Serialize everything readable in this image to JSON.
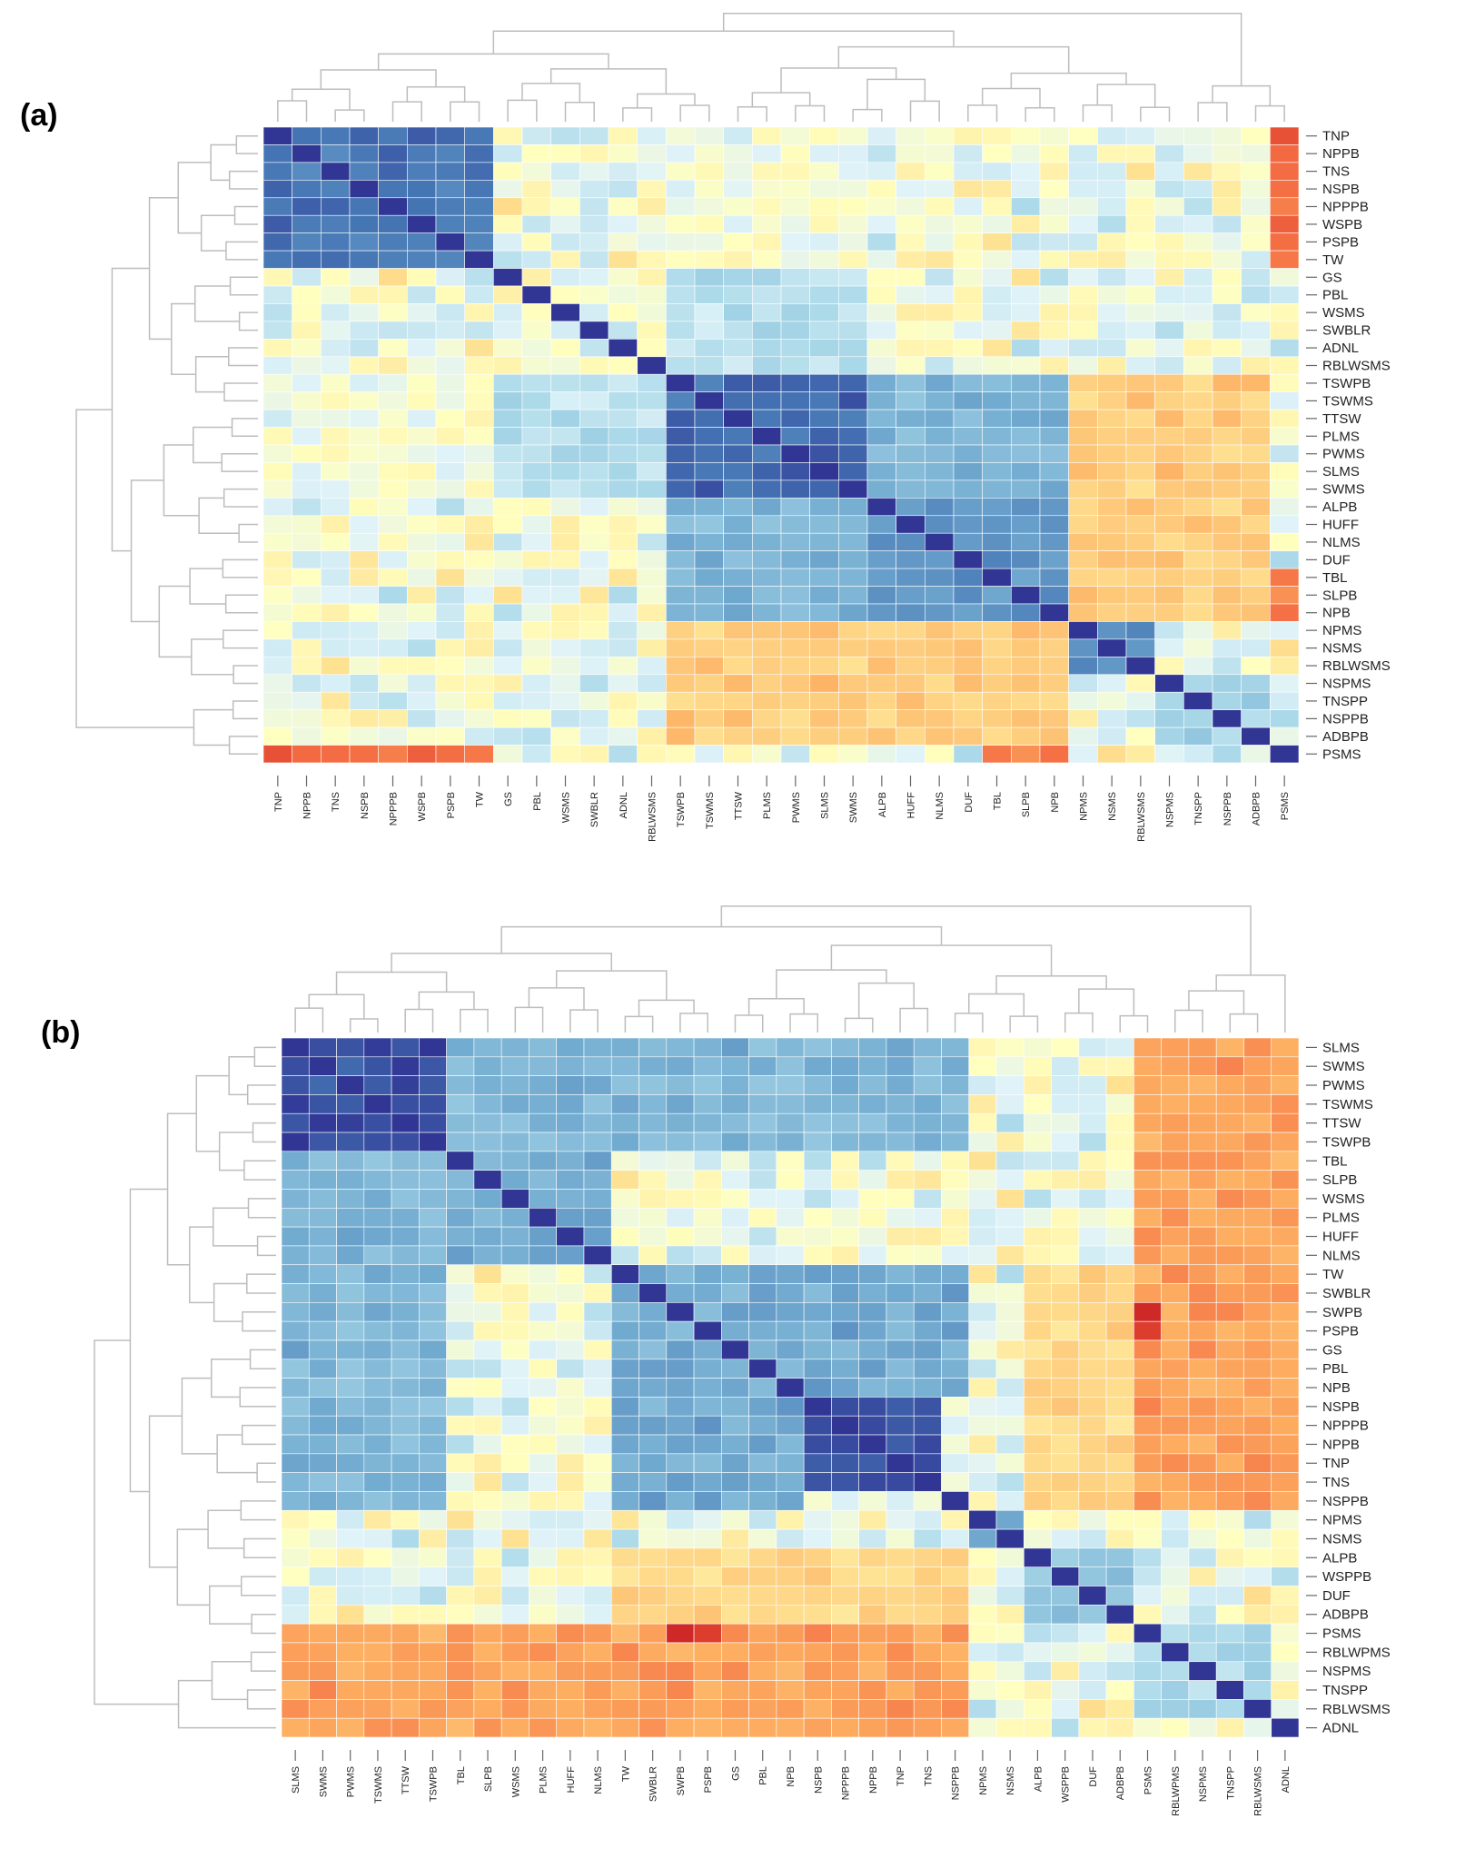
{
  "chart_data": [
    {
      "type": "heatmap",
      "panel_label": "(a)",
      "clustered": true,
      "colormap": "RdYlBu_r",
      "colors": {
        "low": "#313695",
        "mid": "#ffffbf",
        "high": "#a50026"
      },
      "row_labels": [
        "TNP",
        "NPPB",
        "TNS",
        "NSPB",
        "NPPPB",
        "WSPB",
        "PSPB",
        "TW",
        "GS",
        "PBL",
        "WSMS",
        "SWBLR",
        "ADNL",
        "RBLWSMS",
        "TSWPB",
        "TSWMS",
        "TTSW",
        "PLMS",
        "PWMS",
        "SLMS",
        "SWMS",
        "ALPB",
        "HUFF",
        "NLMS",
        "DUF",
        "TBL",
        "SLPB",
        "NPB",
        "NPMS",
        "NSMS",
        "RBLWSMS",
        "NSPMS",
        "TNSPP",
        "NSPPB",
        "ADBPB",
        "PSMS"
      ],
      "col_labels": [
        "TNP",
        "NPPB",
        "TNS",
        "NSPB",
        "NPPPB",
        "WSPB",
        "PSPB",
        "TW",
        "GS",
        "PBL",
        "WSMS",
        "SWBLR",
        "ADNL",
        "RBLWSMS",
        "TSWPB",
        "TSWMS",
        "TTSW",
        "PLMS",
        "PWMS",
        "SLMS",
        "SWMS",
        "ALPB",
        "HUFF",
        "NLMS",
        "DUF",
        "TBL",
        "SLPB",
        "NPB",
        "NPMS",
        "NSMS",
        "RBLWSMS",
        "NSPMS",
        "TNSPP",
        "NSPPB",
        "ADBPB",
        "PSMS"
      ],
      "clusters": [
        {
          "members": [
            0,
            1,
            2,
            3,
            4,
            5,
            6,
            7
          ],
          "value": 0.75
        },
        {
          "members": [
            14,
            15,
            16,
            17,
            18,
            19,
            20
          ],
          "value": 0.78
        },
        {
          "members": [
            21,
            22,
            23,
            24,
            25,
            26,
            27
          ],
          "value": 0.6
        },
        {
          "members": [
            28,
            29,
            30
          ],
          "value": 0.6
        },
        {
          "members": [
            31,
            32,
            33,
            34
          ],
          "value": 0.3
        }
      ],
      "cross_clusters": [
        {
          "a": [
            0,
            1,
            2,
            3,
            4,
            5,
            6,
            7
          ],
          "b": [
            14,
            15,
            16,
            17,
            18,
            19,
            20
          ],
          "value": 0.0
        },
        {
          "a": [
            0,
            1,
            2,
            3,
            4,
            5,
            6,
            7
          ],
          "b": [
            35
          ],
          "value": -0.75
        },
        {
          "a": [
            14,
            15,
            16,
            17,
            18,
            19,
            20,
            21,
            22,
            23,
            24,
            25,
            26,
            27
          ],
          "b": [
            28,
            29,
            30,
            31,
            32,
            33,
            34
          ],
          "value": -0.35
        },
        {
          "a": [
            14,
            15,
            16,
            17,
            18,
            19,
            20
          ],
          "b": [
            21,
            22,
            23,
            24,
            25,
            26,
            27
          ],
          "value": 0.45
        },
        {
          "a": [
            25,
            26,
            27
          ],
          "b": [
            35
          ],
          "value": -0.7
        },
        {
          "a": [
            8,
            9,
            10,
            11,
            12,
            13
          ],
          "b": [
            14,
            15,
            16,
            17,
            18,
            19,
            20
          ],
          "value": 0.2
        }
      ]
    },
    {
      "type": "heatmap",
      "panel_label": "(b)",
      "clustered": true,
      "colormap": "RdYlBu_r",
      "colors": {
        "low": "#313695",
        "mid": "#ffffbf",
        "high": "#a50026"
      },
      "row_labels": [
        "SLMS",
        "SWMS",
        "PWMS",
        "TSWMS",
        "TTSW",
        "TSWPB",
        "TBL",
        "SLPB",
        "WSMS",
        "PLMS",
        "HUFF",
        "NLMS",
        "TW",
        "SWBLR",
        "SWPB",
        "PSPB",
        "GS",
        "PBL",
        "NPB",
        "NSPB",
        "NPPPB",
        "NPPB",
        "TNP",
        "TNS",
        "NSPPB",
        "NPMS",
        "NSMS",
        "ALPB",
        "WSPPB",
        "DUF",
        "ADBPB",
        "PSMS",
        "RBLWPMS",
        "NSPMS",
        "TNSPP",
        "RBLWSMS",
        "ADNL"
      ],
      "col_labels": [
        "SLMS",
        "SWMS",
        "PWMS",
        "TSWMS",
        "TTSW",
        "TSWPB",
        "TBL",
        "SLPB",
        "WSMS",
        "PLMS",
        "HUFF",
        "NLMS",
        "TW",
        "SWBLR",
        "SWPB",
        "PSPB",
        "GS",
        "PBL",
        "NPB",
        "NSPB",
        "NPPPB",
        "NPPB",
        "TNP",
        "TNS",
        "NSPPB",
        "NPMS",
        "NSMS",
        "ALPB",
        "WSPPB",
        "DUF",
        "ADBPB",
        "PSMS",
        "RBLWPMS",
        "NSPMS",
        "TNSPP",
        "RBLWSMS",
        "ADNL"
      ],
      "clusters": [
        {
          "members": [
            0,
            1,
            2,
            3,
            4,
            5
          ],
          "value": 0.9
        },
        {
          "members": [
            6,
            7,
            8,
            9,
            10,
            11
          ],
          "value": 0.5
        },
        {
          "members": [
            12,
            13,
            14,
            15,
            16,
            17,
            18
          ],
          "value": 0.5
        },
        {
          "members": [
            19,
            20,
            21,
            22,
            23
          ],
          "value": 0.88
        },
        {
          "members": [
            25,
            26
          ],
          "value": 0.6
        },
        {
          "members": [
            27,
            28,
            29,
            30
          ],
          "value": 0.35
        },
        {
          "members": [
            31,
            32,
            33,
            34,
            35
          ],
          "value": 0.25
        }
      ],
      "cross_clusters": [
        {
          "a": [
            0,
            1,
            2,
            3,
            4,
            5
          ],
          "b": [
            6,
            7,
            8,
            9,
            10,
            11,
            12,
            13,
            14,
            15,
            16,
            17,
            18,
            19,
            20,
            21,
            22,
            23,
            24
          ],
          "value": 0.45
        },
        {
          "a": [
            12,
            13,
            14,
            15,
            16,
            17,
            18
          ],
          "b": [
            19,
            20,
            21,
            22,
            23,
            24
          ],
          "value": 0.5
        },
        {
          "a": [
            0,
            1,
            2,
            3,
            4,
            5,
            6,
            7,
            8,
            9,
            10,
            11,
            12,
            13,
            14,
            15,
            16,
            17,
            18,
            19,
            20,
            21,
            22,
            23,
            24
          ],
          "b": [
            31,
            32,
            33,
            34,
            35,
            36
          ],
          "value": -0.55
        },
        {
          "a": [
            12,
            13,
            14,
            15,
            16,
            17,
            18,
            19,
            20,
            21,
            22,
            23,
            24
          ],
          "b": [
            27,
            28,
            29,
            30
          ],
          "value": -0.3
        },
        {
          "a": [
            14,
            15
          ],
          "b": [
            31
          ],
          "value": -0.9
        }
      ]
    }
  ]
}
